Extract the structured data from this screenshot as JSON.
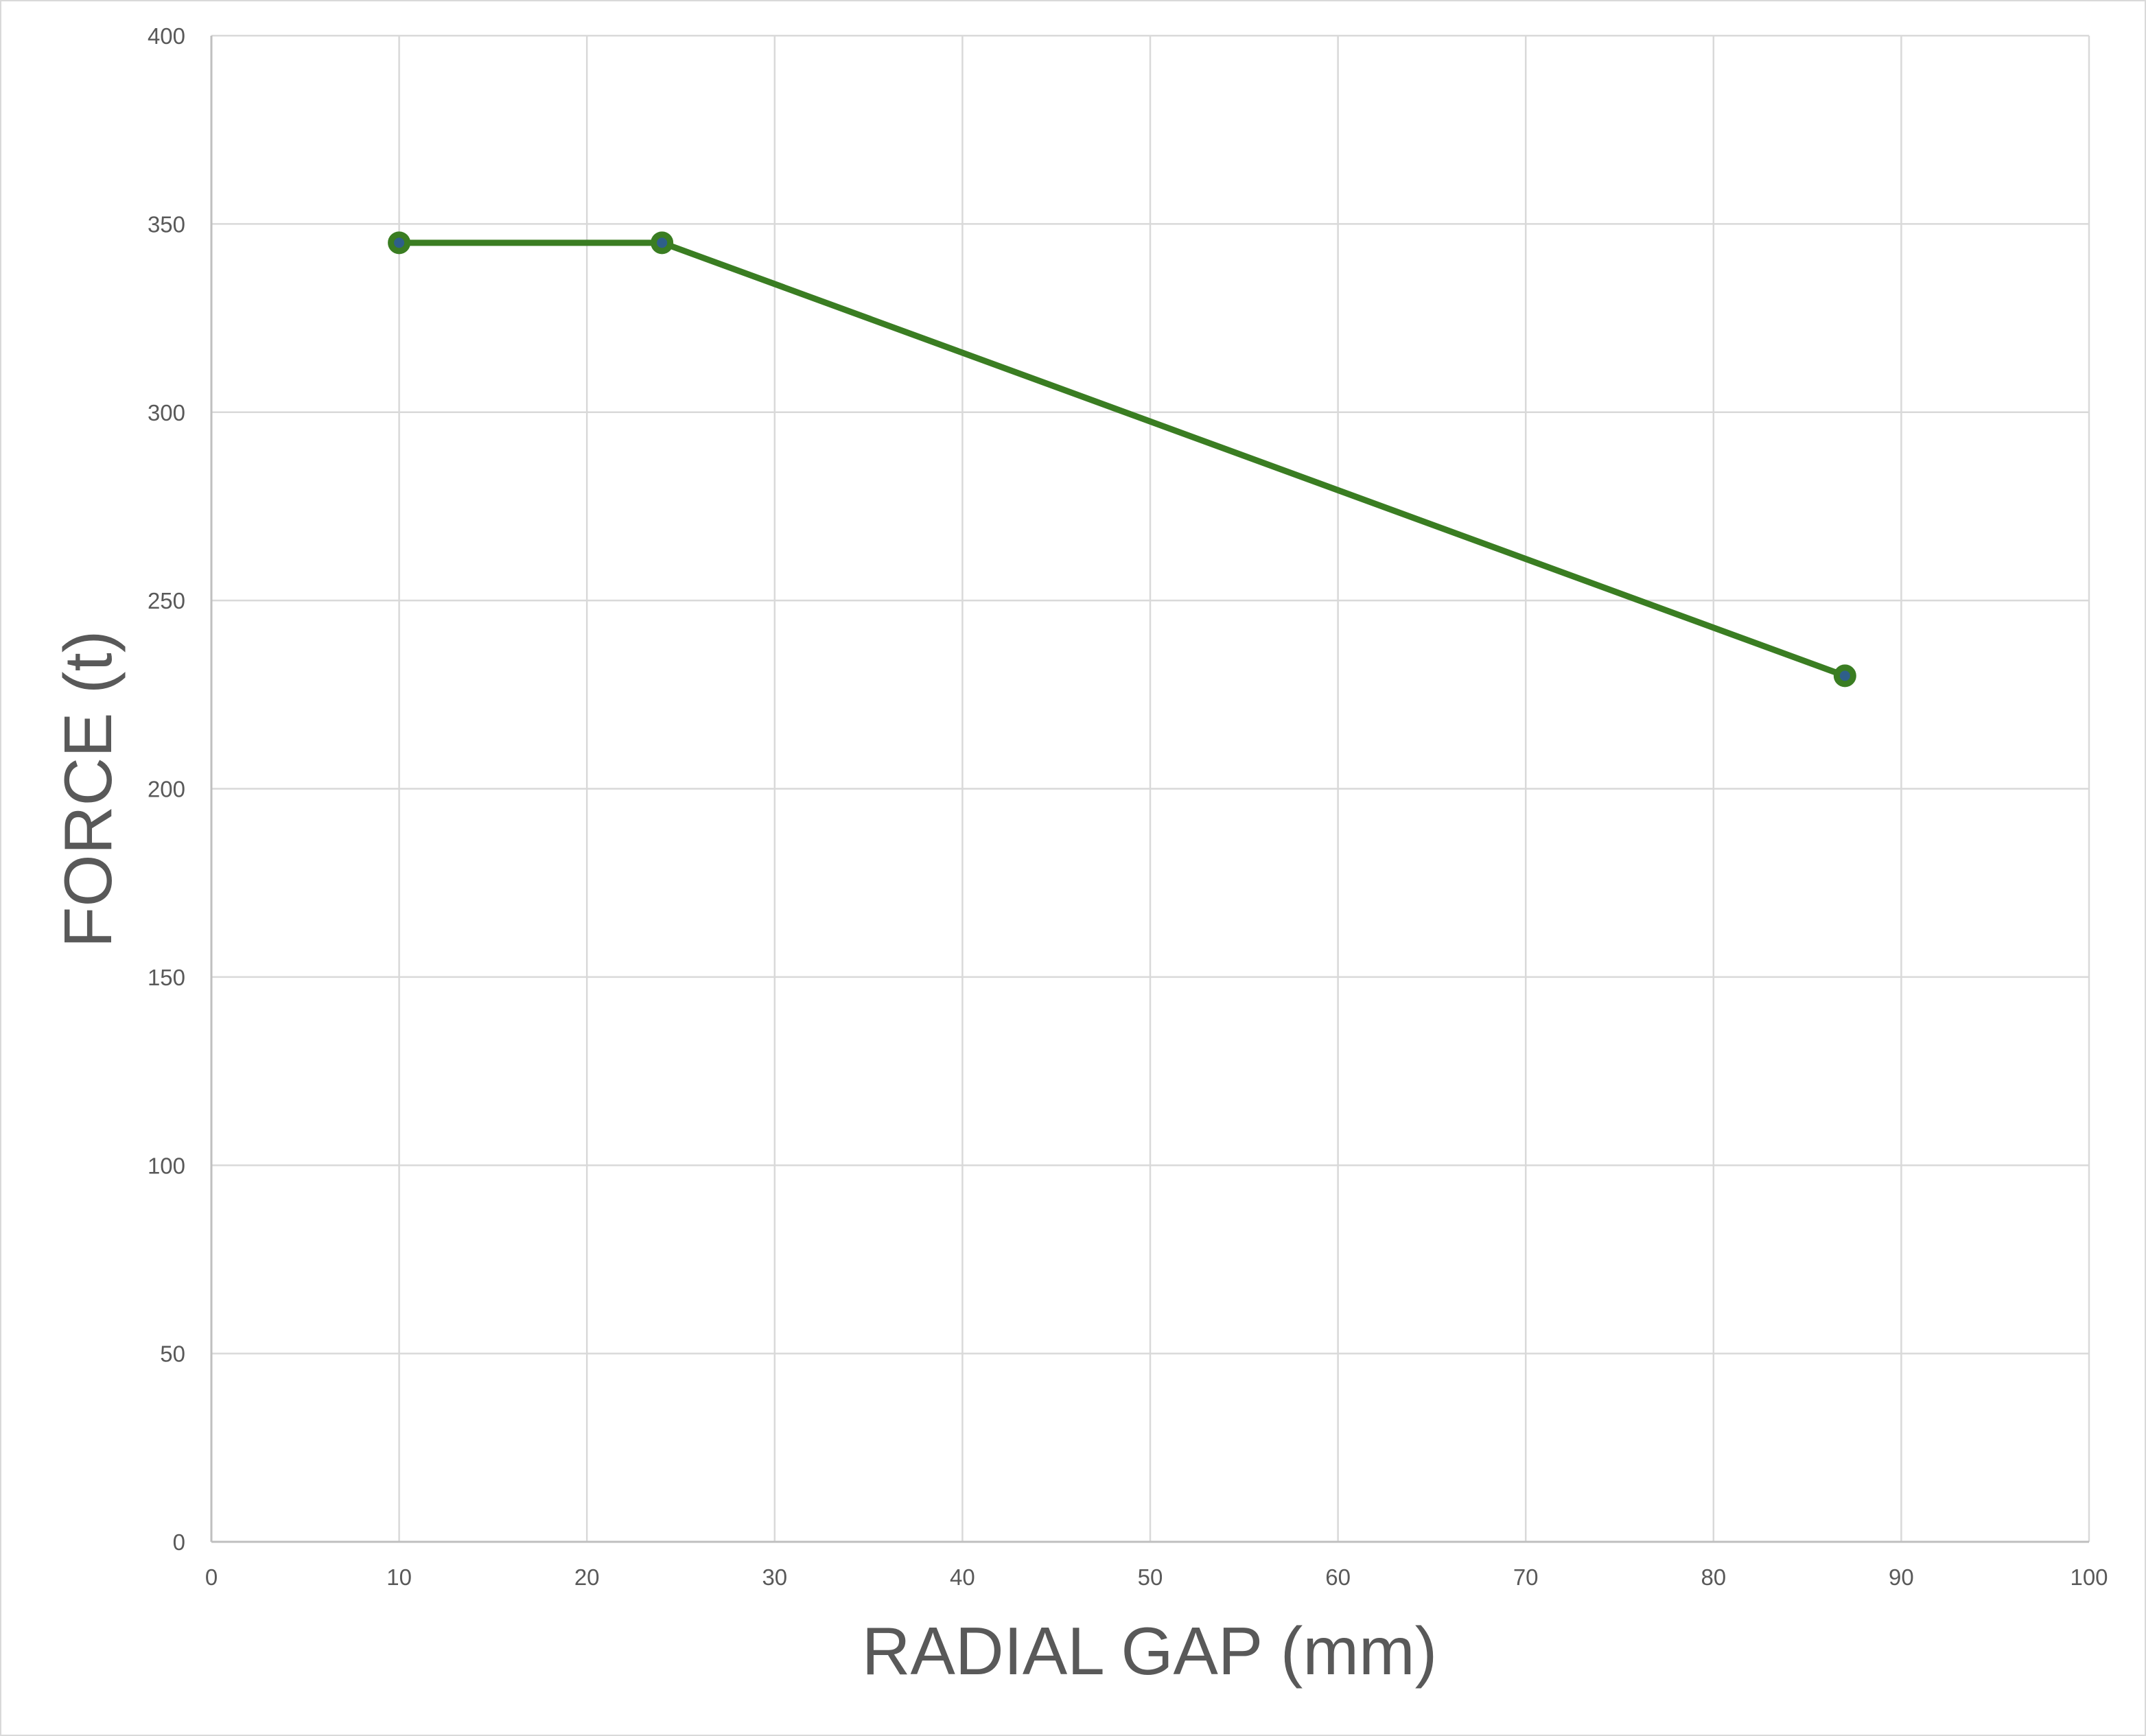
{
  "chart_data": {
    "type": "line",
    "title": "",
    "xlabel": "RADIAL GAP (mm)",
    "ylabel": "FORCE (t)",
    "xlim": [
      0,
      100
    ],
    "ylim": [
      0,
      400
    ],
    "x_ticks": [
      0,
      10,
      20,
      30,
      40,
      50,
      60,
      70,
      80,
      90,
      100
    ],
    "y_ticks": [
      0,
      50,
      100,
      150,
      200,
      250,
      300,
      350,
      400
    ],
    "grid": true,
    "legend": "none",
    "series": [
      {
        "color": "#3a7d22",
        "marker_color": "#2e5f8a",
        "points": [
          {
            "x": 10,
            "y": 345
          },
          {
            "x": 24,
            "y": 345
          },
          {
            "x": 87,
            "y": 230
          }
        ]
      }
    ]
  }
}
